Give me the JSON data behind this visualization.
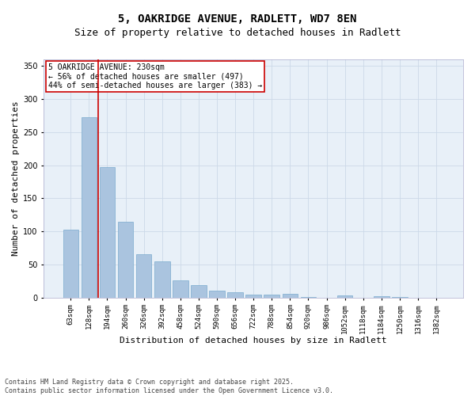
{
  "title1": "5, OAKRIDGE AVENUE, RADLETT, WD7 8EN",
  "title2": "Size of property relative to detached houses in Radlett",
  "xlabel": "Distribution of detached houses by size in Radlett",
  "ylabel": "Number of detached properties",
  "categories": [
    "63sqm",
    "128sqm",
    "194sqm",
    "260sqm",
    "326sqm",
    "392sqm",
    "458sqm",
    "524sqm",
    "590sqm",
    "656sqm",
    "722sqm",
    "788sqm",
    "854sqm",
    "920sqm",
    "986sqm",
    "1052sqm",
    "1118sqm",
    "1184sqm",
    "1250sqm",
    "1316sqm",
    "1382sqm"
  ],
  "values": [
    103,
    272,
    197,
    115,
    65,
    55,
    26,
    19,
    10,
    8,
    4,
    4,
    5,
    1,
    0,
    3,
    0,
    2,
    1,
    0,
    0
  ],
  "bar_color": "#aac4df",
  "bar_edge_color": "#7aabce",
  "vline_color": "#cc0000",
  "annotation_text": "5 OAKRIDGE AVENUE: 230sqm\n← 56% of detached houses are smaller (497)\n44% of semi-detached houses are larger (383) →",
  "annotation_box_color": "#cc0000",
  "annotation_facecolor": "white",
  "ylim": [
    0,
    360
  ],
  "yticks": [
    0,
    50,
    100,
    150,
    200,
    250,
    300,
    350
  ],
  "grid_color": "#ccd9e8",
  "background_color": "#e8f0f8",
  "footer_text": "Contains HM Land Registry data © Crown copyright and database right 2025.\nContains public sector information licensed under the Open Government Licence v3.0.",
  "title_fontsize": 10,
  "subtitle_fontsize": 9,
  "axis_label_fontsize": 8,
  "tick_fontsize": 6.5,
  "annotation_fontsize": 7,
  "footer_fontsize": 6
}
